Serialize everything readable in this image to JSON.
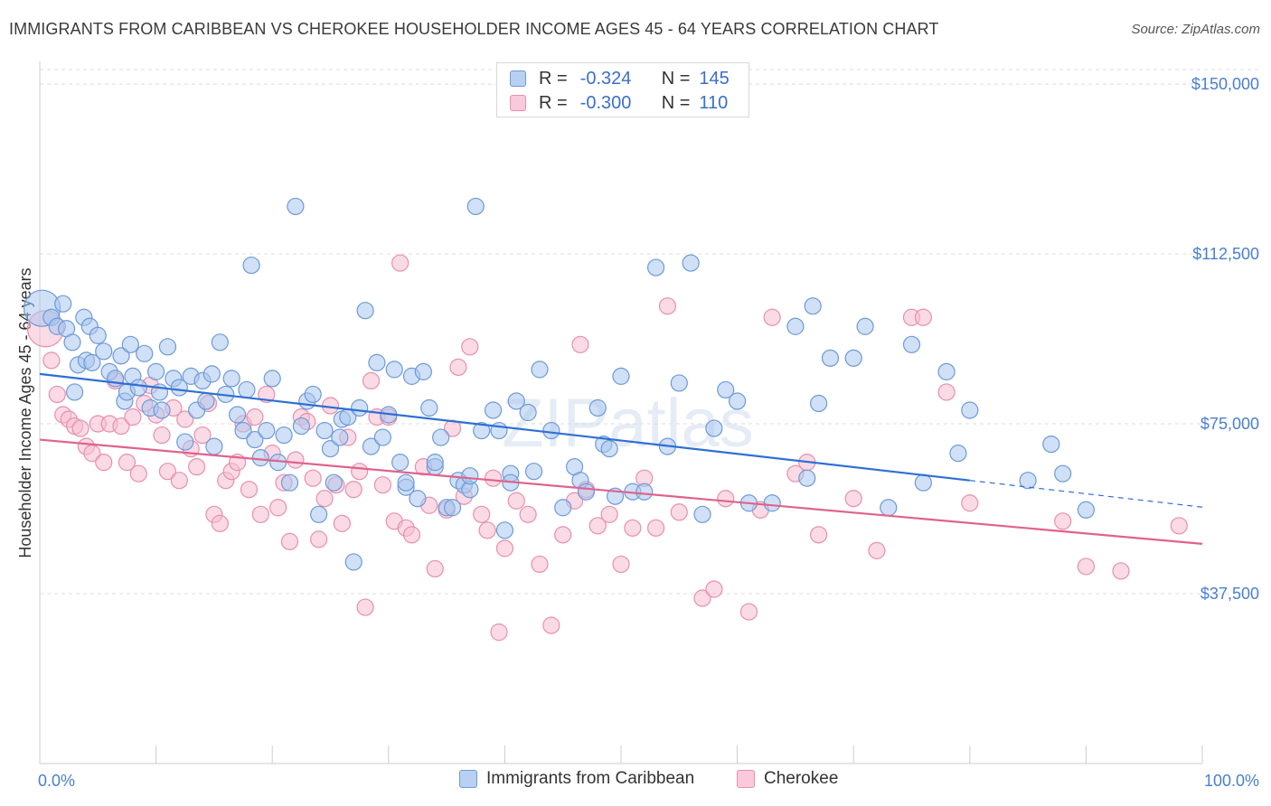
{
  "header": {
    "title": "IMMIGRANTS FROM CARIBBEAN VS CHEROKEE HOUSEHOLDER INCOME AGES 45 - 64 YEARS CORRELATION CHART",
    "source": "Source: ZipAtlas.com"
  },
  "watermark": {
    "zip": "ZIP",
    "atlas": "atlas"
  },
  "legend": {
    "r_label": "R =",
    "n_label": "N =",
    "series1": {
      "r": "-0.324",
      "n": "145"
    },
    "series2": {
      "r": "-0.300",
      "n": "110"
    }
  },
  "colors": {
    "blue_fill": "#a9c6ee",
    "blue_stroke": "#6d9ad8",
    "blue_line": "#2e6fd3",
    "pink_fill": "#f6bdd0",
    "pink_stroke": "#e98eae",
    "pink_line": "#e0628d",
    "axis_text": "#4a7fd0",
    "grid": "#dcdcdc"
  },
  "chart_data": {
    "type": "scatter",
    "title": "IMMIGRANTS FROM CARIBBEAN VS CHEROKEE HOUSEHOLDER INCOME AGES 45 - 64 YEARS CORRELATION CHART",
    "xlabel": "",
    "ylabel": "Householder Income Ages 45 - 64 years",
    "xlim": [
      0,
      100
    ],
    "ylim": [
      0,
      155000
    ],
    "x_tick_labels": [
      "0.0%",
      "100.0%"
    ],
    "y_ticks": [
      37500,
      75000,
      112500,
      150000
    ],
    "y_tick_labels": [
      "$37,500",
      "$75,000",
      "$112,500",
      "$150,000"
    ],
    "series": [
      {
        "name": "Immigrants from Caribbean",
        "color": "blue",
        "r": -0.324,
        "n": 145,
        "trend": {
          "x0": 0,
          "y0": 86000,
          "x1": 80,
          "y1": 62500,
          "dash_to_x": 100,
          "dash_to_y": 56600
        },
        "points": [
          [
            0.2,
            100500
          ],
          [
            1,
            98500
          ],
          [
            1.5,
            96500
          ],
          [
            2,
            101500
          ],
          [
            2.3,
            96000
          ],
          [
            2.8,
            93000
          ],
          [
            3,
            82000
          ],
          [
            3.3,
            88000
          ],
          [
            3.8,
            98500
          ],
          [
            4,
            89000
          ],
          [
            4.3,
            96500
          ],
          [
            4.5,
            88500
          ],
          [
            5,
            94500
          ],
          [
            5.5,
            91000
          ],
          [
            6,
            86500
          ],
          [
            6.5,
            85000
          ],
          [
            7,
            90000
          ],
          [
            7.3,
            80000
          ],
          [
            7.5,
            82000
          ],
          [
            7.8,
            92500
          ],
          [
            8,
            85500
          ],
          [
            8.5,
            83000
          ],
          [
            9,
            90500
          ],
          [
            9.5,
            78500
          ],
          [
            10,
            86500
          ],
          [
            10.3,
            82000
          ],
          [
            10.5,
            78000
          ],
          [
            11,
            92000
          ],
          [
            11.5,
            85000
          ],
          [
            12,
            83000
          ],
          [
            12.5,
            71000
          ],
          [
            13,
            85500
          ],
          [
            13.5,
            78000
          ],
          [
            14,
            84500
          ],
          [
            14.3,
            80000
          ],
          [
            14.8,
            86000
          ],
          [
            15,
            70000
          ],
          [
            15.5,
            93000
          ],
          [
            16,
            81500
          ],
          [
            16.5,
            85000
          ],
          [
            17,
            77000
          ],
          [
            17.5,
            73500
          ],
          [
            17.8,
            82500
          ],
          [
            18.2,
            110000
          ],
          [
            18.5,
            71500
          ],
          [
            19,
            67500
          ],
          [
            19.5,
            73500
          ],
          [
            20,
            85000
          ],
          [
            20.5,
            66500
          ],
          [
            21,
            72500
          ],
          [
            21.5,
            62000
          ],
          [
            22,
            123000
          ],
          [
            22.5,
            74500
          ],
          [
            23,
            80000
          ],
          [
            23.5,
            81500
          ],
          [
            24,
            55000
          ],
          [
            24.5,
            73500
          ],
          [
            25,
            69500
          ],
          [
            25.3,
            62000
          ],
          [
            25.8,
            72000
          ],
          [
            26,
            76000
          ],
          [
            26.5,
            76500
          ],
          [
            27,
            44500
          ],
          [
            27.5,
            78500
          ],
          [
            28,
            100000
          ],
          [
            28.5,
            70000
          ],
          [
            29,
            88500
          ],
          [
            29.5,
            72000
          ],
          [
            30,
            77000
          ],
          [
            30.5,
            87000
          ],
          [
            31,
            66500
          ],
          [
            31.5,
            61000
          ],
          [
            32,
            85500
          ],
          [
            32.5,
            58500
          ],
          [
            33,
            86500
          ],
          [
            33.5,
            78500
          ],
          [
            34,
            65500
          ],
          [
            34.5,
            72000
          ],
          [
            35,
            56500
          ],
          [
            35.5,
            56500
          ],
          [
            36,
            62500
          ],
          [
            36.5,
            61500
          ],
          [
            37,
            60500
          ],
          [
            37.5,
            123000
          ],
          [
            38,
            73500
          ],
          [
            39,
            78000
          ],
          [
            39.5,
            73500
          ],
          [
            40,
            51500
          ],
          [
            40.5,
            64000
          ],
          [
            41,
            80000
          ],
          [
            42,
            77500
          ],
          [
            42.5,
            64500
          ],
          [
            43,
            87000
          ],
          [
            44,
            73500
          ],
          [
            45,
            56500
          ],
          [
            46,
            65500
          ],
          [
            46.5,
            62500
          ],
          [
            47,
            60000
          ],
          [
            48,
            78500
          ],
          [
            48.5,
            70500
          ],
          [
            49,
            69500
          ],
          [
            50,
            85500
          ],
          [
            51,
            60000
          ],
          [
            52,
            60000
          ],
          [
            53,
            109500
          ],
          [
            54,
            70000
          ],
          [
            55,
            84000
          ],
          [
            56,
            110500
          ],
          [
            57,
            55000
          ],
          [
            58,
            74000
          ],
          [
            59,
            82500
          ],
          [
            60,
            80000
          ],
          [
            61,
            57500
          ],
          [
            63,
            57500
          ],
          [
            65,
            96500
          ],
          [
            66,
            63000
          ],
          [
            66.5,
            101000
          ],
          [
            67,
            79500
          ],
          [
            68,
            89500
          ],
          [
            70,
            89500
          ],
          [
            71,
            96500
          ],
          [
            73,
            56500
          ],
          [
            75,
            92500
          ],
          [
            76,
            62000
          ],
          [
            78,
            86500
          ],
          [
            79,
            68500
          ],
          [
            80,
            78000
          ],
          [
            85,
            62500
          ],
          [
            87,
            70500
          ],
          [
            88,
            64000
          ],
          [
            90,
            56000
          ],
          [
            31.5,
            62000
          ],
          [
            34,
            66500
          ],
          [
            37,
            63500
          ],
          [
            40.5,
            62000
          ],
          [
            49.5,
            59000
          ]
        ]
      },
      {
        "name": "Cherokee",
        "color": "pink",
        "r": -0.3,
        "n": 110,
        "trend": {
          "x0": 0,
          "y0": 71500,
          "x1": 100,
          "y1": 48500
        },
        "points": [
          [
            0.5,
            96000
          ],
          [
            1,
            89000
          ],
          [
            1.5,
            81500
          ],
          [
            2,
            77000
          ],
          [
            2.5,
            76000
          ],
          [
            3,
            74500
          ],
          [
            3.5,
            74000
          ],
          [
            4,
            70000
          ],
          [
            4.5,
            68500
          ],
          [
            5,
            75000
          ],
          [
            5.5,
            66500
          ],
          [
            6,
            75000
          ],
          [
            6.5,
            84500
          ],
          [
            7,
            74500
          ],
          [
            7.5,
            66500
          ],
          [
            8,
            76500
          ],
          [
            8.5,
            64000
          ],
          [
            9,
            79500
          ],
          [
            9.5,
            83500
          ],
          [
            10,
            77000
          ],
          [
            10.5,
            72500
          ],
          [
            11,
            64500
          ],
          [
            11.5,
            78500
          ],
          [
            12,
            62500
          ],
          [
            12.5,
            76000
          ],
          [
            13,
            69500
          ],
          [
            13.5,
            65500
          ],
          [
            14,
            72500
          ],
          [
            14.5,
            79500
          ],
          [
            15,
            55000
          ],
          [
            15.5,
            53000
          ],
          [
            16,
            62500
          ],
          [
            16.5,
            64500
          ],
          [
            17,
            66500
          ],
          [
            17.5,
            75000
          ],
          [
            18,
            60500
          ],
          [
            18.5,
            76500
          ],
          [
            19,
            55000
          ],
          [
            19.5,
            81500
          ],
          [
            20,
            68500
          ],
          [
            20.5,
            56500
          ],
          [
            21,
            62000
          ],
          [
            21.5,
            49000
          ],
          [
            22,
            67000
          ],
          [
            22.5,
            76500
          ],
          [
            23,
            75500
          ],
          [
            23.5,
            63000
          ],
          [
            24,
            49500
          ],
          [
            24.5,
            58500
          ],
          [
            25,
            79000
          ],
          [
            25.5,
            61500
          ],
          [
            26,
            53000
          ],
          [
            26.5,
            72000
          ],
          [
            27,
            60500
          ],
          [
            27.5,
            64500
          ],
          [
            28,
            34500
          ],
          [
            28.5,
            84500
          ],
          [
            29,
            76500
          ],
          [
            29.5,
            61500
          ],
          [
            30,
            76500
          ],
          [
            30.5,
            53500
          ],
          [
            31,
            110500
          ],
          [
            31.5,
            52000
          ],
          [
            32,
            50500
          ],
          [
            33,
            65500
          ],
          [
            33.5,
            57000
          ],
          [
            34,
            43000
          ],
          [
            35,
            56000
          ],
          [
            35.5,
            74000
          ],
          [
            36,
            87500
          ],
          [
            36.5,
            59000
          ],
          [
            37,
            92000
          ],
          [
            38,
            55000
          ],
          [
            38.5,
            51500
          ],
          [
            39,
            63000
          ],
          [
            39.5,
            29000
          ],
          [
            40,
            47500
          ],
          [
            41,
            58000
          ],
          [
            42,
            55000
          ],
          [
            43,
            44000
          ],
          [
            44,
            30500
          ],
          [
            45,
            50500
          ],
          [
            46,
            58000
          ],
          [
            46.5,
            92500
          ],
          [
            47,
            60500
          ],
          [
            48,
            52500
          ],
          [
            49,
            55000
          ],
          [
            50,
            44000
          ],
          [
            51,
            52000
          ],
          [
            52,
            63000
          ],
          [
            53,
            52000
          ],
          [
            54,
            101000
          ],
          [
            55,
            55500
          ],
          [
            57,
            36500
          ],
          [
            58,
            38500
          ],
          [
            59,
            58500
          ],
          [
            61,
            33500
          ],
          [
            62,
            56000
          ],
          [
            63,
            98500
          ],
          [
            65,
            64000
          ],
          [
            66,
            66500
          ],
          [
            67,
            50500
          ],
          [
            70,
            58500
          ],
          [
            72,
            47000
          ],
          [
            75,
            98500
          ],
          [
            76,
            98500
          ],
          [
            78,
            82000
          ],
          [
            80,
            57500
          ],
          [
            88,
            53500
          ],
          [
            90,
            43500
          ],
          [
            93,
            42500
          ],
          [
            98,
            52500
          ]
        ]
      }
    ]
  },
  "bottom_legend": {
    "item1": "Immigrants from Caribbean",
    "item2": "Cherokee"
  }
}
